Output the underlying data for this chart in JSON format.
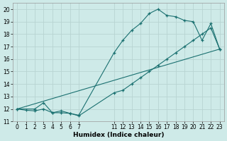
{
  "xlabel": "Humidex (Indice chaleur)",
  "bg_color": "#ceeae8",
  "grid_color": "#b8d4d2",
  "line_color": "#1a7070",
  "line1_x": [
    0,
    1,
    2,
    3,
    4,
    5,
    6,
    7,
    11,
    12,
    13,
    14,
    15,
    16,
    17,
    18,
    19,
    20,
    21,
    22,
    23
  ],
  "line1_y": [
    12.0,
    11.9,
    11.85,
    12.0,
    11.7,
    11.7,
    11.65,
    11.5,
    16.5,
    17.5,
    18.3,
    18.85,
    19.65,
    20.0,
    19.5,
    19.4,
    19.1,
    19.0,
    17.5,
    18.85,
    16.8
  ],
  "line2_x": [
    0,
    2,
    3,
    4,
    5,
    6,
    7,
    11,
    12,
    13,
    14,
    15,
    16,
    17,
    18,
    19,
    20,
    21,
    22,
    23
  ],
  "line2_y": [
    12.0,
    12.0,
    12.5,
    11.7,
    11.85,
    11.65,
    11.45,
    13.3,
    13.5,
    14.0,
    14.5,
    15.0,
    15.5,
    16.0,
    16.5,
    17.0,
    17.5,
    18.0,
    18.5,
    16.8
  ],
  "line3_x": [
    0,
    23
  ],
  "line3_y": [
    12.0,
    16.8
  ],
  "xlim": [
    -0.5,
    23.5
  ],
  "ylim": [
    11,
    20.5
  ],
  "xticks": [
    0,
    1,
    2,
    3,
    4,
    5,
    6,
    7,
    11,
    12,
    13,
    14,
    15,
    16,
    17,
    18,
    19,
    20,
    21,
    22,
    23
  ],
  "yticks": [
    11,
    12,
    13,
    14,
    15,
    16,
    17,
    18,
    19,
    20
  ],
  "tick_fontsize": 5.5,
  "xlabel_fontsize": 6.5
}
